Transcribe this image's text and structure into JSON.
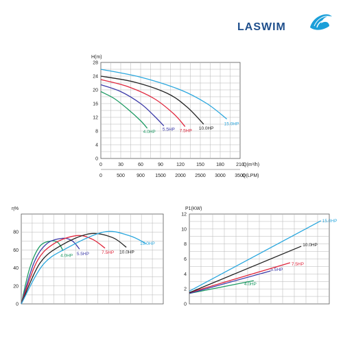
{
  "brand": {
    "name": "LASWIM",
    "logo_icon": "shell-icon",
    "logo_color": "#1a9fd9"
  },
  "series_colors": {
    "4.0HP": "#1d9a63",
    "5.5HP": "#3b3aa8",
    "7.5HP": "#e0263c",
    "10.0HP": "#222222",
    "15.0HP": "#2aa7de"
  },
  "chart_data": [
    {
      "id": "head",
      "type": "line",
      "ylabel": "H(m)",
      "xlabel_top": "Q(m³/h)",
      "xlabel_bottom": "Q(LPM)",
      "yticks": [
        "0",
        "4",
        "8",
        "12",
        "16",
        "20",
        "24",
        "28"
      ],
      "xticks_top": [
        "0",
        "30",
        "60",
        "90",
        "120",
        "150",
        "180",
        "210"
      ],
      "xticks_bottom": [
        "0",
        "500",
        "900",
        "1500",
        "2000",
        "2500",
        "3000",
        "3500"
      ],
      "ylim": [
        0,
        28
      ],
      "xlim": [
        0,
        210
      ],
      "grid": true,
      "series": [
        {
          "name": "4.0HP",
          "x": [
            0,
            20,
            40,
            60,
            70
          ],
          "y": [
            19.5,
            17.5,
            14.5,
            11,
            8.8
          ]
        },
        {
          "name": "5.5HP",
          "x": [
            0,
            30,
            60,
            80,
            95
          ],
          "y": [
            21.5,
            19.5,
            16,
            12.5,
            9.5
          ]
        },
        {
          "name": "7.5HP",
          "x": [
            0,
            40,
            80,
            110,
            127
          ],
          "y": [
            23,
            21,
            17.5,
            13,
            9.3
          ]
        },
        {
          "name": "10.0HP",
          "x": [
            0,
            50,
            100,
            130,
            155
          ],
          "y": [
            24,
            22.3,
            19,
            15,
            10
          ]
        },
        {
          "name": "15.0HP",
          "x": [
            0,
            60,
            120,
            160,
            190
          ],
          "y": [
            26,
            23.7,
            20,
            16,
            11.5
          ]
        }
      ]
    },
    {
      "id": "efficiency",
      "type": "line",
      "ylabel": "η%",
      "yticks": [
        "0",
        "20",
        "40",
        "60",
        "80"
      ],
      "ylim": [
        0,
        100
      ],
      "xlim": [
        0,
        10
      ],
      "grid": true,
      "series": [
        {
          "name": "4.0HP",
          "x": [
            0,
            0.6,
            1.3,
            2.1,
            2.6,
            2.95
          ],
          "y": [
            0,
            40,
            64,
            70,
            68,
            59
          ]
        },
        {
          "name": "5.5HP",
          "x": [
            0,
            0.9,
            1.8,
            2.9,
            3.6,
            4.1
          ],
          "y": [
            0,
            46,
            67,
            73,
            70,
            61
          ]
        },
        {
          "name": "7.5HP",
          "x": [
            0,
            1.1,
            2.3,
            3.9,
            5.0,
            5.9
          ],
          "y": [
            0,
            47,
            67,
            76,
            72,
            62
          ]
        },
        {
          "name": "10.0HP",
          "x": [
            0,
            1.3,
            2.8,
            4.8,
            6.4,
            7.4
          ],
          "y": [
            0,
            45,
            65,
            78,
            74,
            63
          ]
        },
        {
          "name": "15.0HP",
          "x": [
            0,
            1.5,
            3.2,
            5.8,
            7.6,
            8.8
          ],
          "y": [
            0,
            43,
            62,
            80,
            76,
            67
          ]
        }
      ]
    },
    {
      "id": "power",
      "type": "line",
      "ylabel": "P1(KW)",
      "yticks": [
        "0",
        "2",
        "4",
        "6",
        "8",
        "10",
        "12"
      ],
      "ylim": [
        0,
        12
      ],
      "xlim": [
        0,
        10
      ],
      "grid": true,
      "series": [
        {
          "name": "4.0HP",
          "x": [
            0,
            4.6
          ],
          "y": [
            1.4,
            3.1
          ]
        },
        {
          "name": "5.5HP",
          "x": [
            0,
            5.8
          ],
          "y": [
            1.4,
            4.4
          ]
        },
        {
          "name": "7.5HP",
          "x": [
            0,
            7.2
          ],
          "y": [
            1.5,
            5.5
          ]
        },
        {
          "name": "10.0HP",
          "x": [
            0,
            8.0
          ],
          "y": [
            1.5,
            7.7
          ]
        },
        {
          "name": "15.0HP",
          "x": [
            0,
            9.4
          ],
          "y": [
            1.7,
            11.1
          ]
        }
      ]
    }
  ]
}
